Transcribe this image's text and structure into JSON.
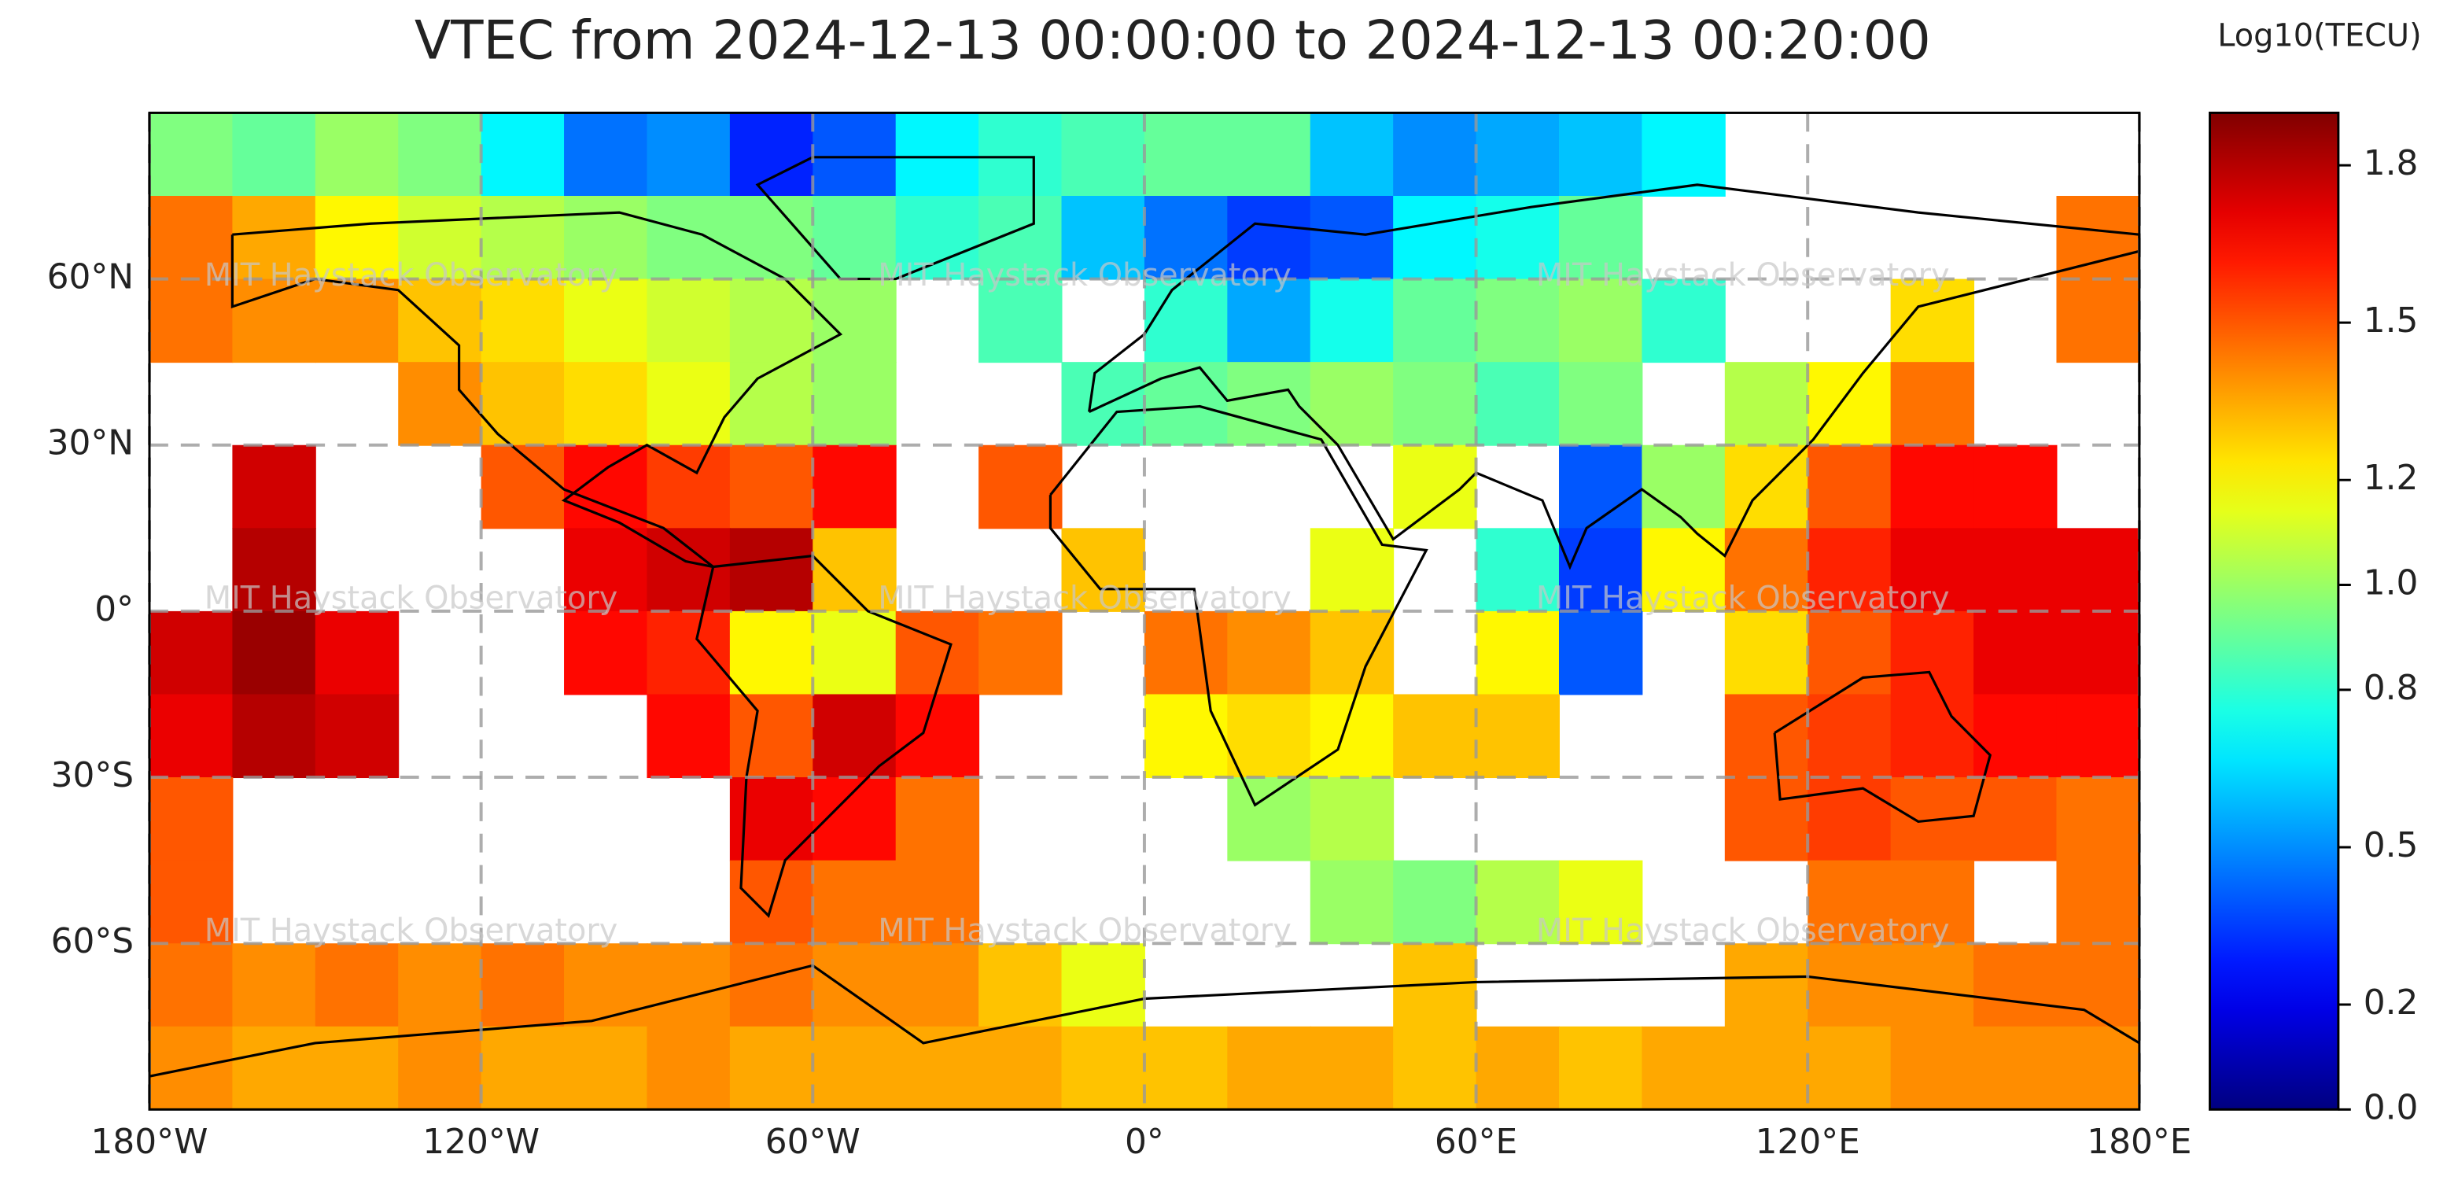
{
  "chart_data": {
    "type": "heatmap",
    "title": "VTEC from 2024-12-13 00:00:00 to 2024-12-13 00:20:00",
    "watermark": "MIT Haystack Observatory",
    "colormap": "jet",
    "grid": true,
    "xlim": [
      -180,
      180
    ],
    "ylim": [
      -90,
      90
    ],
    "xticks": [
      {
        "value": -180,
        "label": "180°W"
      },
      {
        "value": -120,
        "label": "120°W"
      },
      {
        "value": -60,
        "label": "60°W"
      },
      {
        "value": 0,
        "label": "0°"
      },
      {
        "value": 60,
        "label": "60°E"
      },
      {
        "value": 120,
        "label": "120°E"
      },
      {
        "value": 180,
        "label": "180°E"
      }
    ],
    "yticks": [
      {
        "value": 60,
        "label": "60°N"
      },
      {
        "value": 30,
        "label": "30°N"
      },
      {
        "value": 0,
        "label": "0°"
      },
      {
        "value": -30,
        "label": "30°S"
      },
      {
        "value": -60,
        "label": "60°S"
      }
    ],
    "xbins": [
      -180,
      -165,
      -150,
      -135,
      -120,
      -105,
      -90,
      -75,
      -60,
      -45,
      -30,
      -15,
      0,
      15,
      30,
      45,
      60,
      75,
      90,
      105,
      120,
      135,
      150,
      165,
      180
    ],
    "ybins": [
      90,
      75,
      60,
      45,
      30,
      15,
      0,
      -15,
      -30,
      -45,
      -60,
      -75,
      -90
    ],
    "values": [
      [
        0.95,
        0.9,
        1.0,
        0.95,
        0.7,
        0.45,
        0.5,
        0.3,
        0.4,
        0.7,
        0.8,
        0.85,
        0.9,
        0.9,
        0.6,
        0.5,
        0.55,
        0.6,
        0.7,
        null,
        null,
        null,
        null,
        null
      ],
      [
        1.45,
        1.35,
        1.2,
        1.1,
        1.05,
        1.0,
        0.95,
        0.95,
        0.9,
        0.8,
        0.85,
        0.6,
        0.45,
        0.35,
        0.4,
        0.7,
        0.75,
        0.9,
        null,
        null,
        null,
        null,
        null,
        1.45
      ],
      [
        1.45,
        1.4,
        1.4,
        1.3,
        1.25,
        1.15,
        1.1,
        1.05,
        1.0,
        null,
        0.85,
        null,
        0.8,
        0.55,
        0.75,
        0.9,
        0.95,
        1.0,
        0.8,
        null,
        null,
        1.25,
        null,
        1.45
      ],
      [
        null,
        null,
        null,
        1.4,
        1.3,
        1.25,
        1.15,
        1.05,
        1.0,
        null,
        null,
        0.85,
        0.9,
        0.95,
        1.0,
        0.95,
        0.85,
        0.95,
        null,
        1.05,
        1.2,
        1.45,
        null,
        null
      ],
      [
        null,
        1.75,
        null,
        null,
        1.5,
        1.65,
        1.55,
        1.5,
        1.65,
        null,
        1.5,
        null,
        null,
        null,
        null,
        1.15,
        null,
        0.4,
        1.0,
        1.25,
        1.5,
        1.65,
        1.65,
        null
      ],
      [
        null,
        1.8,
        null,
        null,
        null,
        1.7,
        1.75,
        1.8,
        1.3,
        null,
        null,
        1.3,
        null,
        null,
        1.15,
        null,
        0.8,
        0.35,
        1.2,
        1.45,
        1.6,
        1.7,
        1.7,
        1.7
      ],
      [
        1.75,
        1.85,
        1.7,
        null,
        null,
        1.65,
        1.6,
        1.2,
        1.15,
        1.5,
        1.45,
        null,
        1.45,
        1.4,
        1.3,
        null,
        1.2,
        0.4,
        null,
        1.25,
        1.5,
        1.6,
        1.7,
        1.7
      ],
      [
        1.7,
        1.8,
        1.75,
        null,
        null,
        null,
        1.65,
        1.5,
        1.75,
        1.65,
        null,
        null,
        1.2,
        1.25,
        1.2,
        1.3,
        1.3,
        null,
        null,
        1.5,
        1.55,
        1.6,
        1.65,
        1.65
      ],
      [
        1.5,
        null,
        null,
        null,
        null,
        null,
        null,
        1.7,
        1.65,
        1.45,
        null,
        null,
        null,
        1.0,
        1.05,
        null,
        null,
        null,
        null,
        1.5,
        1.55,
        1.5,
        1.5,
        1.45
      ],
      [
        1.5,
        null,
        null,
        null,
        null,
        null,
        null,
        1.5,
        1.45,
        1.45,
        null,
        null,
        null,
        null,
        1.0,
        0.95,
        1.05,
        1.15,
        null,
        null,
        1.45,
        1.45,
        null,
        1.45
      ],
      [
        1.45,
        1.4,
        1.45,
        1.4,
        1.45,
        1.4,
        1.4,
        1.45,
        1.4,
        1.4,
        1.3,
        1.15,
        null,
        null,
        null,
        1.3,
        null,
        null,
        null,
        1.35,
        1.4,
        1.4,
        1.45,
        1.45
      ],
      [
        1.4,
        1.35,
        1.35,
        1.4,
        1.35,
        1.35,
        1.4,
        1.35,
        1.35,
        1.35,
        1.35,
        1.3,
        1.3,
        1.35,
        1.35,
        1.3,
        1.35,
        1.3,
        1.35,
        1.35,
        1.35,
        1.4,
        1.4,
        1.4
      ]
    ],
    "colorbar": {
      "label": "Log10(TECU)",
      "lim": [
        0,
        1.9
      ],
      "ticks": [
        {
          "value": 0,
          "label": "0.0"
        },
        0.2,
        0.5,
        0.8,
        {
          "value": 1,
          "label": "1.0"
        },
        1.2,
        1.5,
        1.8
      ]
    }
  }
}
